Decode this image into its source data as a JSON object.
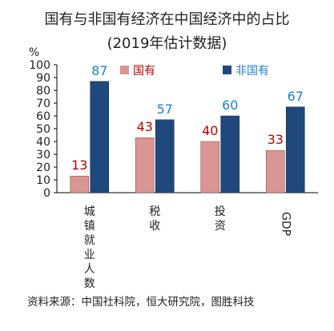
{
  "chart_data": {
    "type": "bar",
    "title": "国有与非国有经济在中国经济中的占比",
    "subtitle": "(2019年估计数据)",
    "ylabel": "%",
    "ylim": [
      0,
      100
    ],
    "yticks": [
      0,
      10,
      20,
      30,
      40,
      50,
      60,
      70,
      80,
      90,
      100
    ],
    "categories": [
      "城镇就业人数",
      "税收",
      "投资",
      "GDP"
    ],
    "category_orientation": [
      "vertical",
      "vertical",
      "vertical",
      "rotated"
    ],
    "series": [
      {
        "name": "国有",
        "values": [
          13,
          43,
          40,
          33
        ],
        "color": "#D99694",
        "label_color": "#C00000"
      },
      {
        "name": "非国有",
        "values": [
          87,
          57,
          60,
          67
        ],
        "color": "#1F497D",
        "label_color": "#1F7FD6"
      }
    ],
    "legend": "top-right",
    "grid": false
  },
  "source": "资料来源：中国社科院，恒大研究院，图胜科技"
}
